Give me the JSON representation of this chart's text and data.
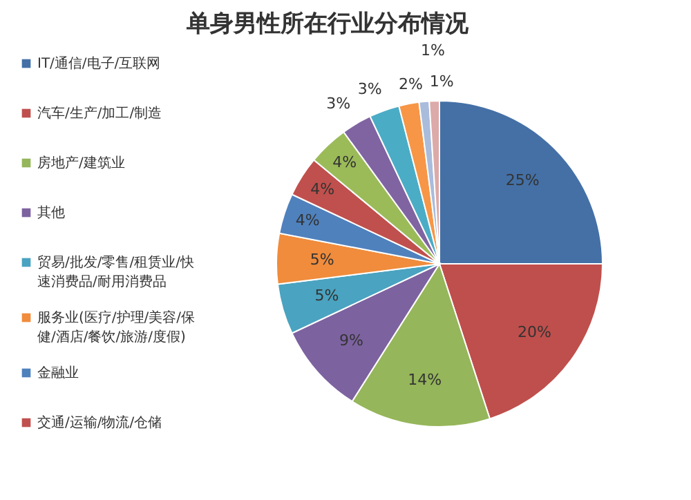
{
  "chart_data": {
    "type": "pie",
    "title": "单身男性所在行业分布情况",
    "categories": [
      "IT/通信/电子/互联网",
      "汽车/生产/加工/制造",
      "房地产/建筑业",
      "其他",
      "贸易/批发/零售/租赁业/快速消费品/耐用消费品",
      "服务业(医疗/护理/美容/保健/酒店/餐饮/旅游/度假)",
      "金融业",
      "交通/运输/物流/仓储",
      null,
      null,
      null,
      null,
      null,
      null
    ],
    "values": [
      25,
      20,
      14,
      9,
      5,
      5,
      4,
      4,
      4,
      3,
      3,
      2,
      1,
      1
    ],
    "colors": [
      "#4470a6",
      "#bf4f4c",
      "#95b65a",
      "#7d62a0",
      "#4aa3c0",
      "#f08c3c",
      "#4f81bd",
      "#c0504d",
      "#9bbb59",
      "#8064a2",
      "#4bacc6",
      "#f79646",
      "#a9bcdc",
      "#dcaaa8"
    ],
    "value_labels": [
      "25%",
      "20%",
      "14%",
      "9%",
      "5%",
      "5%",
      "4%",
      "4%",
      "4%",
      "3%",
      "3%",
      "2%",
      "1%",
      "1%"
    ],
    "data_labels": true,
    "legend": "left"
  }
}
